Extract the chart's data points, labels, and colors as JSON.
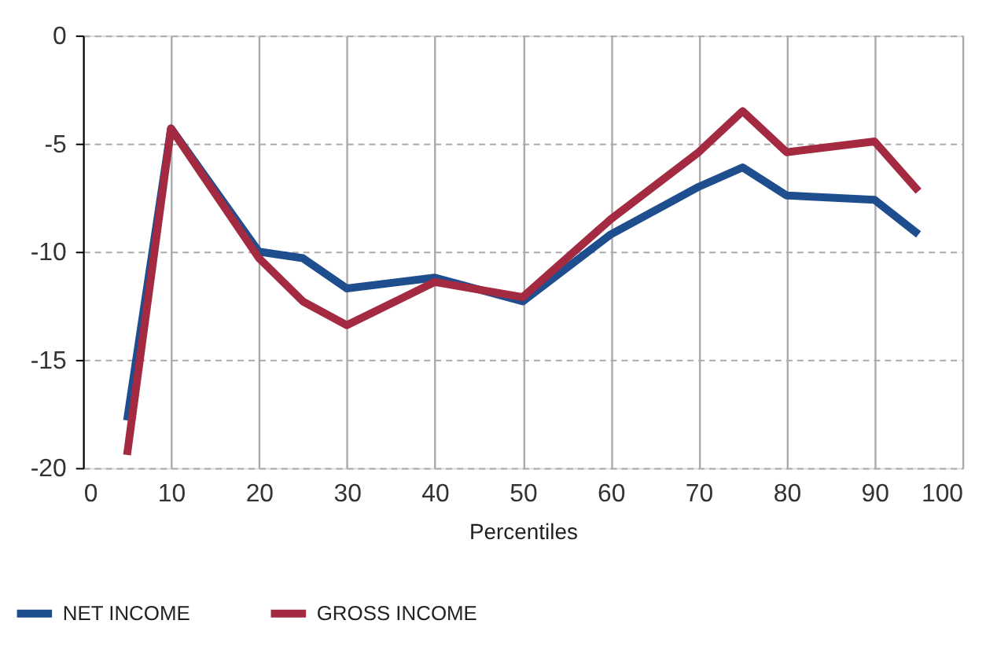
{
  "chart_data": {
    "type": "line",
    "xlabel": "Percentiles",
    "x": [
      5,
      10,
      20,
      25,
      30,
      40,
      50,
      60,
      70,
      75,
      80,
      90,
      95
    ],
    "series": [
      {
        "name": "NET INCOME",
        "color": "#1f4e8f",
        "values": [
          -17.8,
          -4.3,
          -10.0,
          -10.3,
          -11.7,
          -11.2,
          -12.3,
          -9.2,
          -7.0,
          -6.1,
          -7.4,
          -7.6,
          -9.2
        ]
      },
      {
        "name": "GROSS INCOME",
        "color": "#a32a40",
        "values": [
          -19.4,
          -4.3,
          -10.3,
          -12.3,
          -13.4,
          -11.4,
          -12.1,
          -8.5,
          -5.4,
          -3.5,
          -5.4,
          -4.9,
          -7.2
        ]
      }
    ],
    "xlim": [
      0,
      100
    ],
    "xticks": [
      0,
      10,
      20,
      30,
      40,
      50,
      60,
      70,
      80,
      90,
      100
    ],
    "ylim": [
      -20,
      0
    ],
    "yticks": [
      -20,
      -15,
      -10,
      -5,
      0
    ],
    "grid": true,
    "legend": "bottom left",
    "marker": "none",
    "line_style": "solid"
  }
}
